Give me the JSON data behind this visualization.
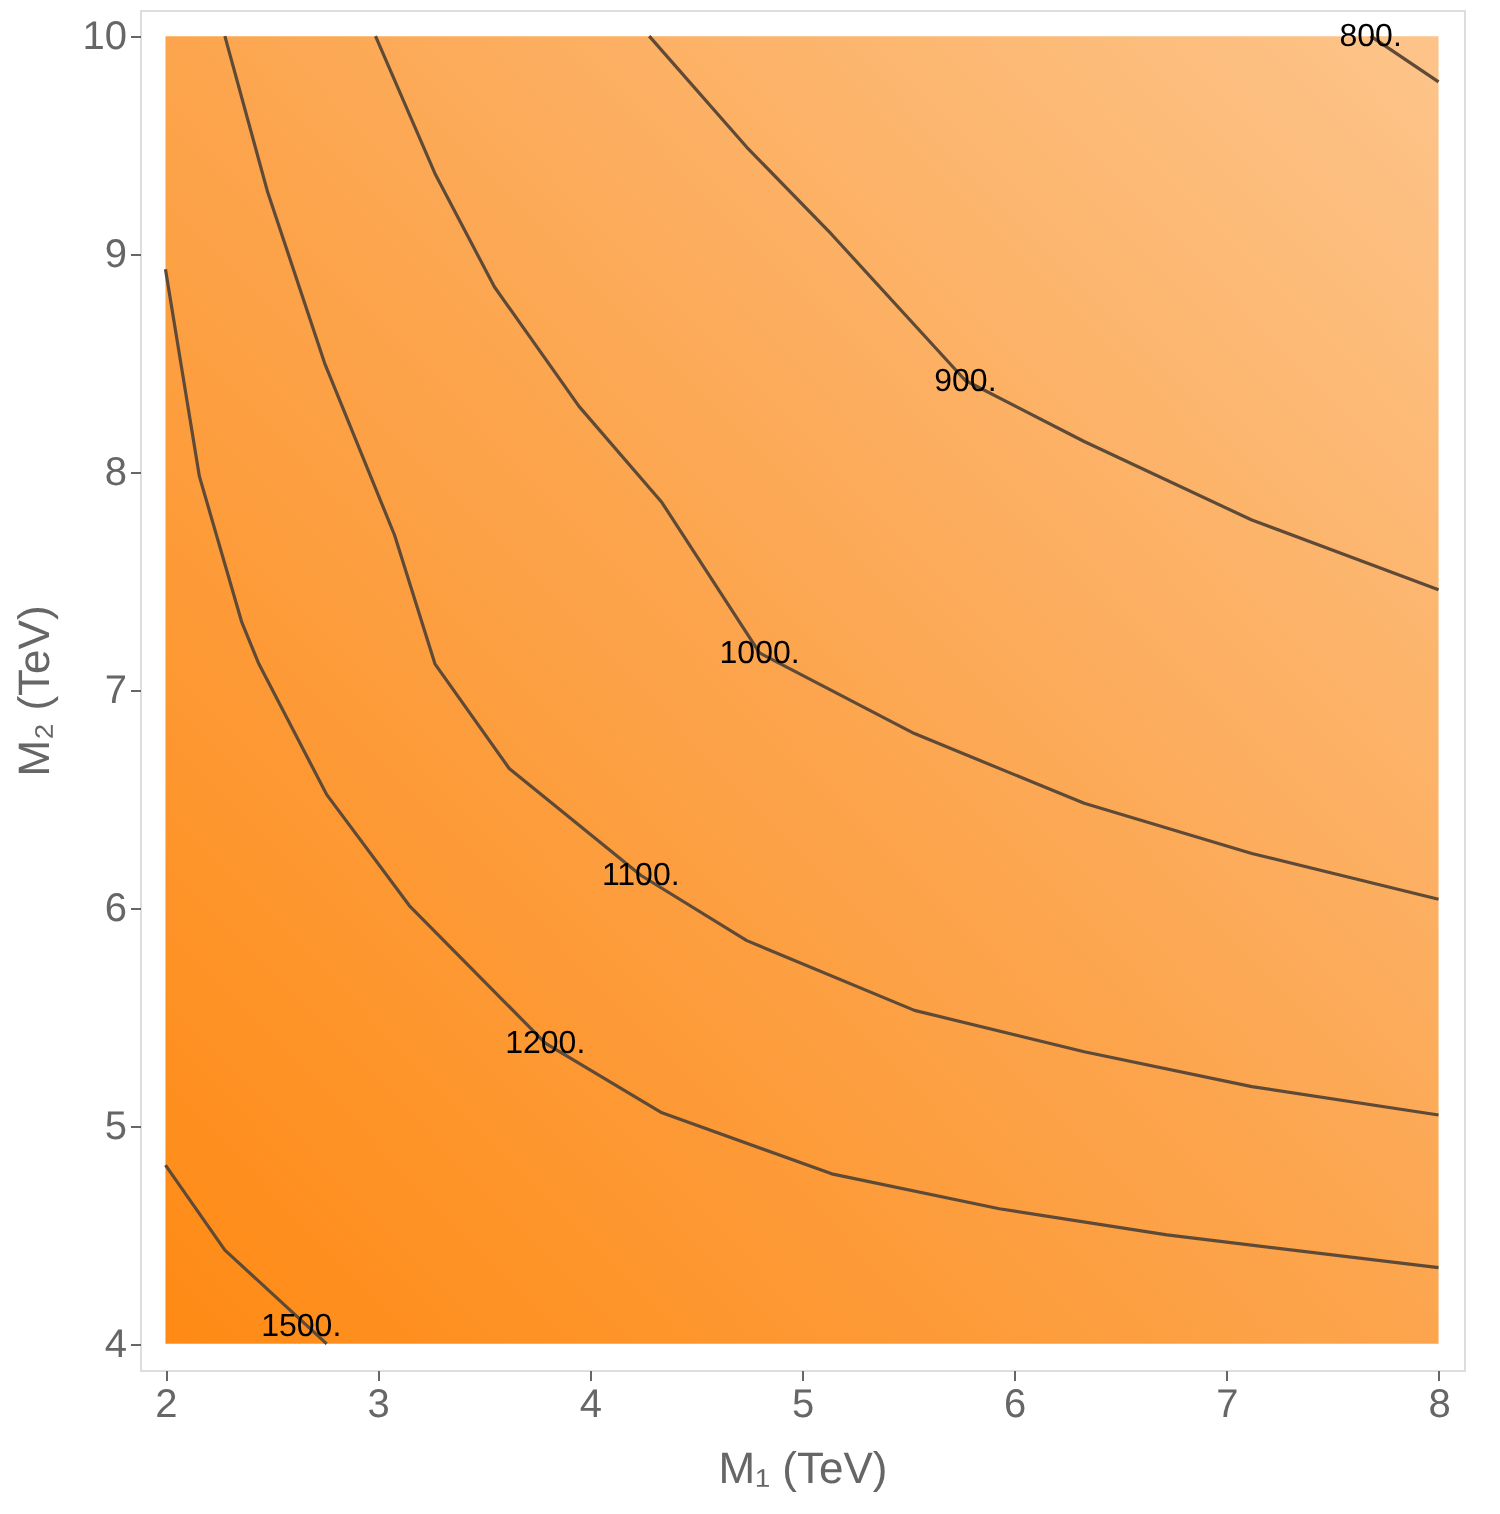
{
  "chart_data": {
    "type": "line",
    "xlabel": "M₁ (TeV)",
    "ylabel": "M₂ (TeV)",
    "xlim": [
      1.88,
      8.12
    ],
    "ylim": [
      3.88,
      10.12
    ],
    "xticks": [
      2,
      3,
      4,
      5,
      6,
      7,
      8
    ],
    "yticks": [
      4,
      5,
      6,
      7,
      8,
      9,
      10
    ],
    "grid": false,
    "marker": "none",
    "line_style": "solid",
    "series": [
      {
        "color": "#5e4a36",
        "x": [
          7.68,
          8
        ],
        "values": [
          10,
          9.79
        ]
      },
      {
        "color": "#5e4a36",
        "x": [
          4.28,
          4.74,
          5.14,
          5.77,
          6.33,
          7.12,
          8
        ],
        "values": [
          10,
          9.49,
          9.09,
          8.42,
          8.14,
          7.78,
          7.46
        ]
      },
      {
        "color": "#5e4a36",
        "x": [
          2.99,
          3.27,
          3.55,
          3.95,
          4.34,
          4.8,
          5.53,
          6.33,
          7.12,
          8
        ],
        "values": [
          10,
          9.37,
          8.85,
          8.3,
          7.86,
          7.17,
          6.8,
          6.48,
          6.25,
          6.04
        ]
      },
      {
        "color": "#5e4a36",
        "x": [
          2.28,
          2.48,
          2.75,
          3.08,
          3.27,
          3.62,
          4.24,
          4.74,
          5.53,
          6.33,
          7.12,
          8
        ],
        "values": [
          10,
          9.29,
          8.5,
          7.71,
          7.12,
          6.64,
          6.15,
          5.85,
          5.53,
          5.34,
          5.18,
          5.05
        ]
      },
      {
        "color": "#5e4a36",
        "x": [
          2,
          2.16,
          2.36,
          2.44,
          2.76,
          3.15,
          3.79,
          4.34,
          5.14,
          5.93,
          6.72,
          8
        ],
        "values": [
          8.93,
          7.98,
          7.31,
          7.12,
          6.52,
          6.01,
          5.38,
          5.06,
          4.78,
          4.62,
          4.5,
          4.35
        ]
      },
      {
        "color": "#5e4a36",
        "x": [
          2,
          2.28,
          2.76
        ],
        "values": [
          4.82,
          4.43,
          4
        ]
      }
    ],
    "annotations": [
      {
        "text": "800.",
        "x": 7.68,
        "y": 10
      },
      {
        "text": "900.",
        "x": 5.77,
        "y": 8.42
      },
      {
        "text": "1000.",
        "x": 4.8,
        "y": 7.17
      },
      {
        "text": "1100.",
        "x": 4.24,
        "y": 6.15
      },
      {
        "text": "1200.",
        "x": 3.79,
        "y": 5.38
      },
      {
        "text": "1500.",
        "x": 2.64,
        "y": 4.08
      }
    ]
  }
}
